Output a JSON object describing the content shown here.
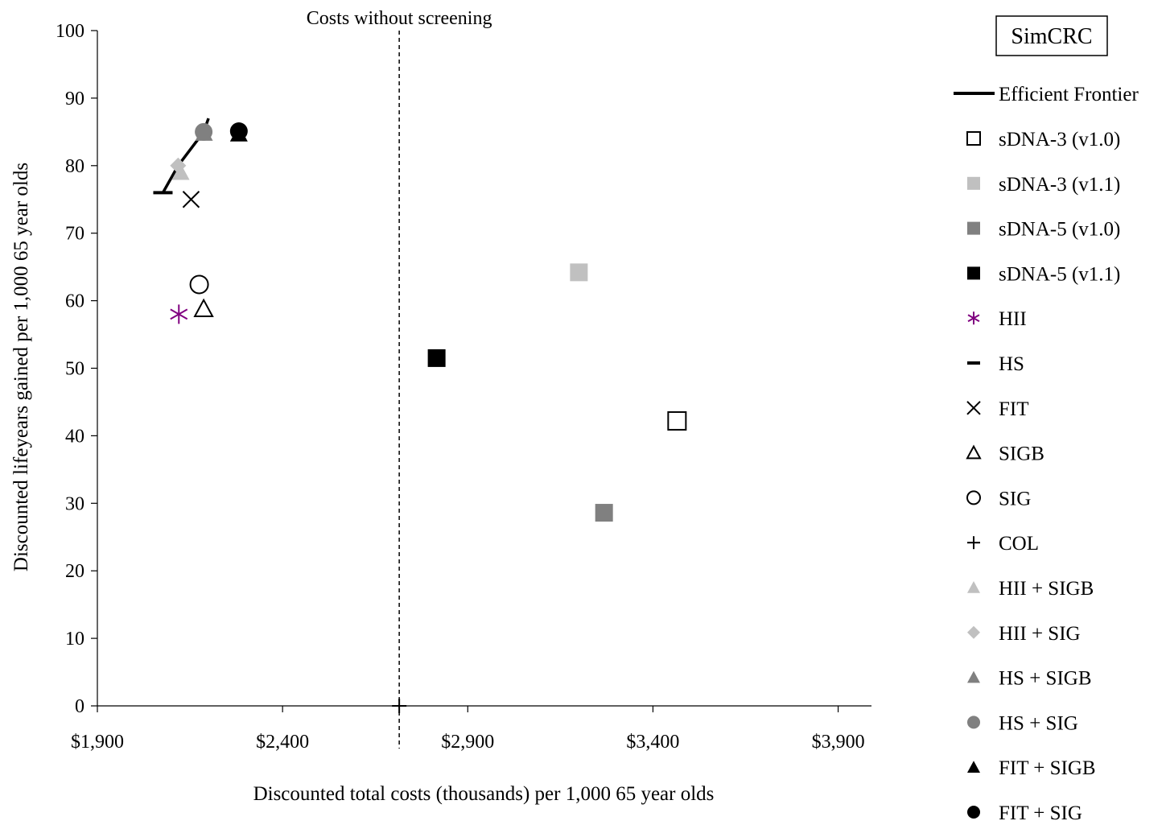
{
  "chart_data": {
    "type": "scatter",
    "title": "",
    "model_label": "SimCRC",
    "xlabel": "Discounted total costs (thousands) per 1,000 65 year olds",
    "ylabel": "Discounted lifeyears gained per 1,000 65 year olds",
    "xlim": [
      1900,
      3990
    ],
    "ylim": [
      0,
      100
    ],
    "x_ticks": [
      1900,
      2400,
      2900,
      3400,
      3900
    ],
    "x_tick_labels": [
      "$1,900",
      "$2,400",
      "$2,900",
      "$3,400",
      "$3,900"
    ],
    "y_ticks": [
      0,
      10,
      20,
      30,
      40,
      50,
      60,
      70,
      80,
      90,
      100
    ],
    "y_tick_labels": [
      "0",
      "10",
      "20",
      "30",
      "40",
      "50",
      "60",
      "70",
      "80",
      "90",
      "100"
    ],
    "reference_line": {
      "x": 2715,
      "label": "Costs without screening",
      "style": "dashed"
    },
    "grid": false,
    "legend_position": "right",
    "frontier": {
      "name": "Efficient Frontier",
      "points": [
        [
          2077,
          76
        ],
        [
          2118,
          80
        ],
        [
          2187,
          85
        ],
        [
          2200,
          87
        ]
      ]
    },
    "series": [
      {
        "name": "sDNA-3 (v1.0)",
        "marker": "square-open",
        "color": "#000000",
        "x": 3465,
        "y": 42.2
      },
      {
        "name": "sDNA-3 (v1.1)",
        "marker": "square",
        "color": "#c0c0c0",
        "x": 3200,
        "y": 64.2
      },
      {
        "name": "sDNA-5 (v1.0)",
        "marker": "square",
        "color": "#808080",
        "x": 3268,
        "y": 28.6
      },
      {
        "name": "sDNA-5 (v1.1)",
        "marker": "square",
        "color": "#000000",
        "x": 2816,
        "y": 51.5
      },
      {
        "name": "HII",
        "marker": "asterisk",
        "color": "#800080",
        "x": 2120,
        "y": 58.0
      },
      {
        "name": "HS",
        "marker": "dash",
        "color": "#000000",
        "x": 2077,
        "y": 76.0
      },
      {
        "name": "FIT",
        "marker": "x",
        "color": "#000000",
        "x": 2153,
        "y": 75.0
      },
      {
        "name": "SIGB",
        "marker": "triangle-open",
        "color": "#000000",
        "x": 2187,
        "y": 58.8
      },
      {
        "name": "SIG",
        "marker": "circle-open",
        "color": "#000000",
        "x": 2175,
        "y": 62.4
      },
      {
        "name": "COL",
        "marker": "plus",
        "color": "#000000",
        "x": 2715,
        "y": 0.0
      },
      {
        "name": "HII + SIGB",
        "marker": "triangle",
        "color": "#c0c0c0",
        "x": 2125,
        "y": 79.0
      },
      {
        "name": "HII + SIG",
        "marker": "diamond",
        "color": "#c0c0c0",
        "x": 2118,
        "y": 80.0
      },
      {
        "name": "HS + SIGB",
        "marker": "triangle",
        "color": "#808080",
        "x": 2188,
        "y": 84.8
      },
      {
        "name": "HS + SIG",
        "marker": "circle",
        "color": "#808080",
        "x": 2187,
        "y": 85.0
      },
      {
        "name": "FIT + SIGB",
        "marker": "triangle",
        "color": "#000000",
        "x": 2282,
        "y": 84.7
      },
      {
        "name": "FIT + SIG",
        "marker": "circle",
        "color": "#000000",
        "x": 2282,
        "y": 85.1
      }
    ]
  }
}
